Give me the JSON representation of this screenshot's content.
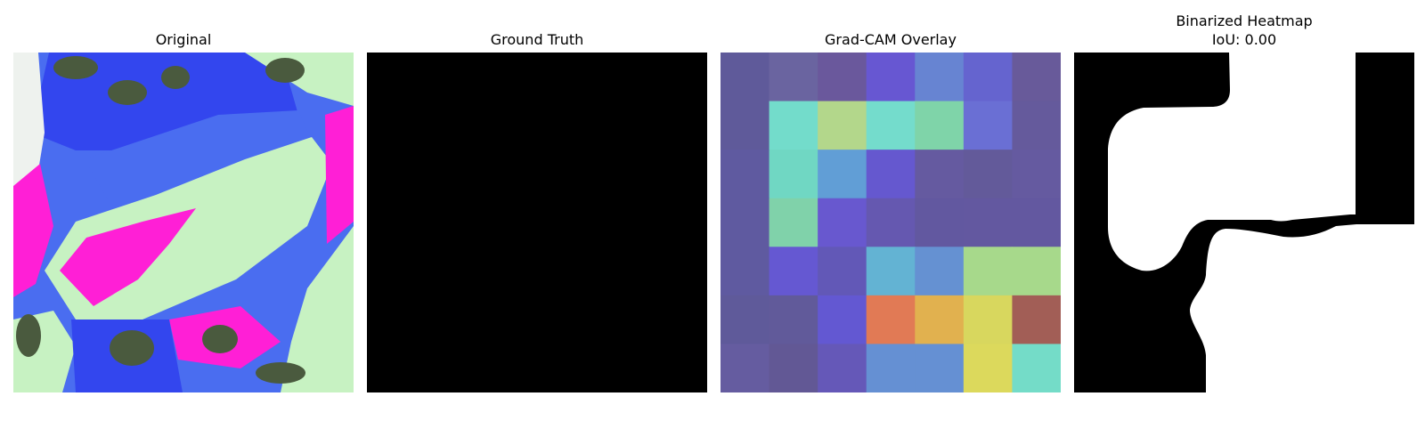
{
  "chart_data": [
    {
      "type": "image",
      "title": "Original",
      "palette": {
        "blue": "#3346ee",
        "light_blue": "#4a6df0",
        "magenta": "#ff1fd6",
        "pale_green": "#c7f2c2",
        "dark_olive": "#4a5a3e",
        "white": "#eef2ee"
      }
    },
    {
      "type": "image",
      "title": "Ground Truth",
      "fill": "#000000"
    },
    {
      "type": "heatmap",
      "title": "Grad-CAM Overlay",
      "rows": 7,
      "cols": 7,
      "cells": [
        [
          "#5f5a9a",
          "#6a64a0",
          "#6a589c",
          "#6757d2",
          "#6784d2",
          "#6564cf",
          "#685a9a"
        ],
        [
          "#5f5a9a",
          "#73dccb",
          "#b3d78b",
          "#74dccc",
          "#7fd4a9",
          "#6a6fd4",
          "#655a9c"
        ],
        [
          "#5f5aa0",
          "#70d7c3",
          "#619ed6",
          "#6558cf",
          "#655aa0",
          "#635a9a",
          "#655aa0"
        ],
        [
          "#5f5aa0",
          "#80d2aa",
          "#6858cf",
          "#6558b0",
          "#6258a0",
          "#6358a0",
          "#6358a0"
        ],
        [
          "#5f5aa0",
          "#6558d2",
          "#6258b7",
          "#63b3d3",
          "#6591d2",
          "#a7d98b",
          "#a7d98b"
        ],
        [
          "#5f5a9a",
          "#615a9a",
          "#6358d2",
          "#e17a55",
          "#e1b14f",
          "#d8d75e",
          "#a25e56"
        ],
        [
          "#655ca0",
          "#625895",
          "#6558b8",
          "#6590d3",
          "#6590d3",
          "#dcd95c",
          "#74dcc8"
        ]
      ]
    },
    {
      "type": "image",
      "title": "Binarized Heatmap",
      "subtitle": "IoU: 0.00",
      "background": "#000000",
      "foreground": "#ffffff"
    }
  ]
}
